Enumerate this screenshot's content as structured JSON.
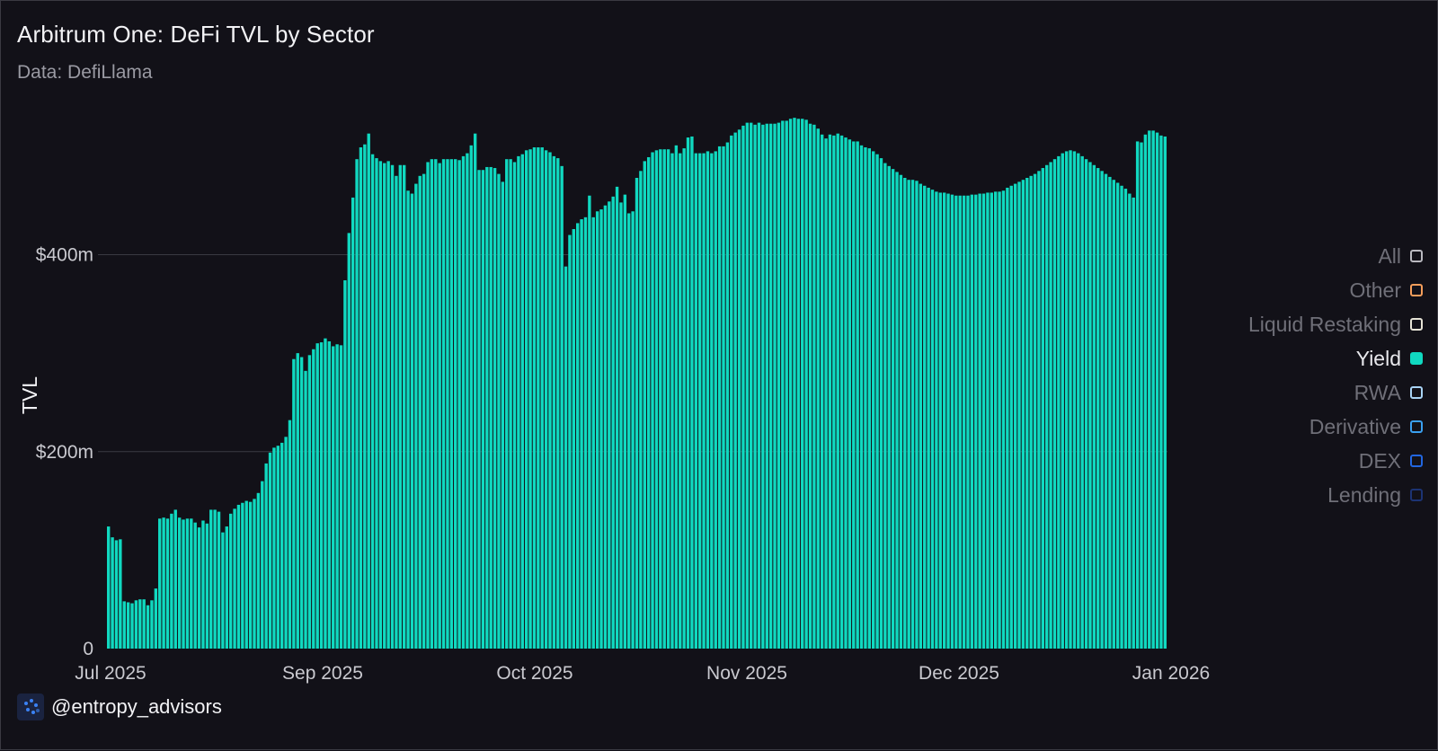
{
  "title": "Arbitrum One: DeFi TVL by Sector",
  "subtitle": "Data: DefiLlama",
  "brand": {
    "handle": "@entropy_advisors",
    "logo_icon": "entropy-logo-icon"
  },
  "legend": [
    {
      "label": "All",
      "color": "#b9b9bf",
      "active": false
    },
    {
      "label": "Other",
      "color": "#f59e5b",
      "active": false
    },
    {
      "label": "Liquid Restaking",
      "color": "#e6e3d6",
      "active": false
    },
    {
      "label": "Yield",
      "color": "#10d9c0",
      "active": true
    },
    {
      "label": "RWA",
      "color": "#a9d4f5",
      "active": false
    },
    {
      "label": "Derivative",
      "color": "#3aa0f0",
      "active": false
    },
    {
      "label": "DEX",
      "color": "#2266e0",
      "active": false
    },
    {
      "label": "Lending",
      "color": "#1c3373",
      "active": false
    }
  ],
  "chart_data": {
    "type": "bar",
    "ylabel": "TVL",
    "xlabel": "",
    "ylim": [
      0,
      530
    ],
    "grid": true,
    "bar_color": "#10d9c0",
    "legend_position": "right",
    "y_ticks": [
      {
        "value": 0,
        "label": "0"
      },
      {
        "value": 200,
        "label": "$200m"
      },
      {
        "value": 400,
        "label": "$400m"
      }
    ],
    "x_ticks": [
      {
        "index": 0,
        "label": "Jul 2025"
      },
      {
        "index": 46,
        "label": "Sep 2025"
      },
      {
        "index": 92,
        "label": "Oct 2025"
      },
      {
        "index": 138,
        "label": "Nov 2025"
      },
      {
        "index": 184,
        "label": "Dec 2025"
      },
      {
        "index": 230,
        "label": "Jan 2026"
      }
    ],
    "start_date": "2025-07-01",
    "series": [
      {
        "values": [
          124,
          113,
          110,
          111,
          48,
          47,
          46,
          49,
          50,
          50,
          44,
          49,
          61,
          132,
          133,
          132,
          137,
          141,
          133,
          131,
          132,
          132,
          128,
          123,
          130,
          127,
          141,
          141,
          139,
          118,
          124,
          137,
          142,
          146,
          148,
          150,
          149,
          152,
          158,
          170,
          188,
          199,
          204,
          206,
          209,
          215,
          232,
          294,
          300,
          296,
          282,
          298,
          304,
          310,
          311,
          315,
          312,
          307,
          309,
          308,
          374,
          422,
          458,
          497,
          509,
          512,
          523,
          502,
          498,
          495,
          493,
          495,
          491,
          480,
          491,
          491,
          465,
          462,
          472,
          480,
          482,
          494,
          497,
          497,
          493,
          497,
          497,
          497,
          497,
          496,
          500,
          503,
          511,
          523,
          486,
          486,
          489,
          489,
          488,
          482,
          474,
          497,
          497,
          494,
          500,
          502,
          506,
          507,
          509,
          509,
          509,
          506,
          504,
          500,
          498,
          490,
          388,
          420,
          426,
          432,
          436,
          438,
          460,
          438,
          444,
          446,
          450,
          454,
          459,
          469,
          453,
          461,
          442,
          444,
          478,
          485,
          495,
          499,
          504,
          506,
          507,
          507,
          507,
          503,
          511,
          503,
          508,
          519,
          520,
          503,
          503,
          503,
          505,
          503,
          505,
          510,
          510,
          514,
          521,
          524,
          527,
          531,
          534,
          534,
          532,
          534,
          532,
          533,
          533,
          533,
          534,
          536,
          536,
          538,
          539,
          538,
          538,
          537,
          533,
          532,
          528,
          522,
          518,
          522,
          521,
          523,
          521,
          519,
          517,
          515,
          515,
          511,
          509,
          508,
          505,
          502,
          498,
          493,
          490,
          487,
          484,
          481,
          478,
          476,
          476,
          475,
          472,
          470,
          468,
          466,
          464,
          463,
          463,
          462,
          461,
          460,
          460,
          460,
          460,
          461,
          461,
          462,
          462,
          463,
          463,
          464,
          464,
          465,
          468,
          470,
          472,
          474,
          476,
          478,
          480,
          482,
          485,
          488,
          491,
          494,
          497,
          500,
          503,
          505,
          506,
          505,
          503,
          500,
          497,
          494,
          491,
          488,
          485,
          482,
          479,
          476,
          473,
          470,
          467,
          462,
          458,
          515,
          514,
          522,
          526,
          526,
          524,
          521,
          520
        ]
      }
    ]
  }
}
